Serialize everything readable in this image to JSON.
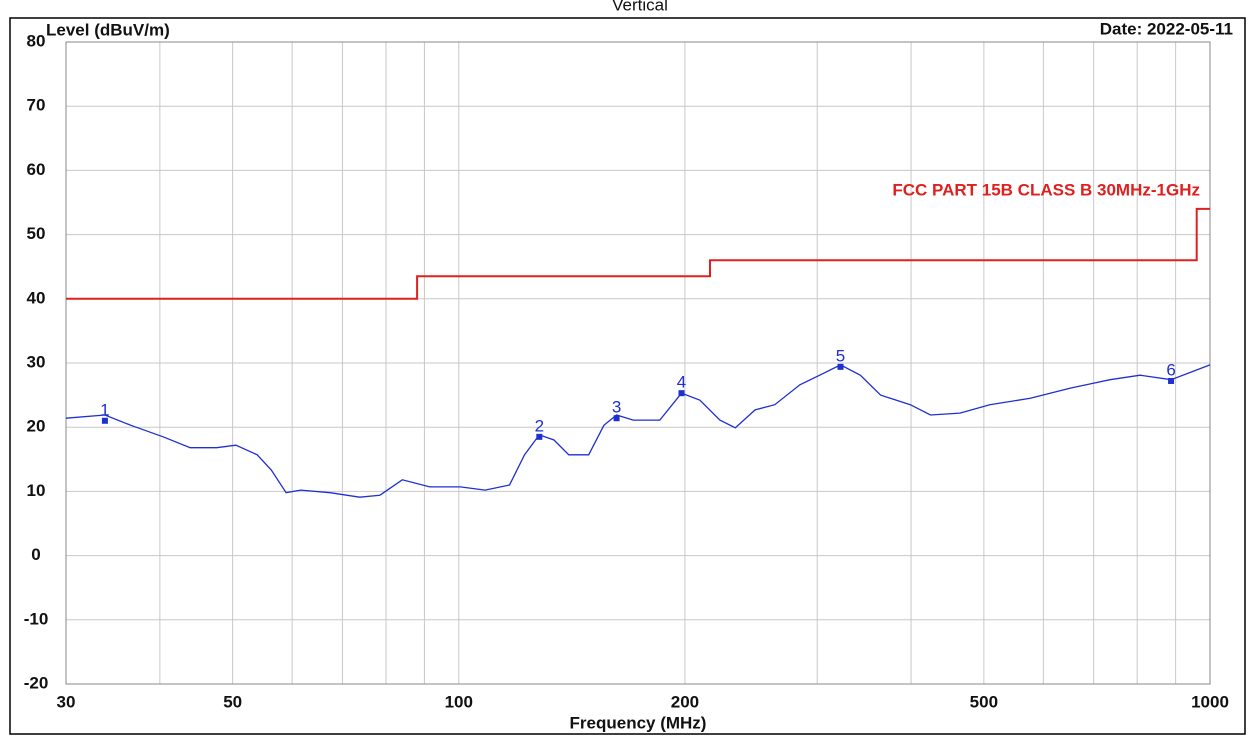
{
  "chart_data": {
    "type": "line",
    "title": "Vertical",
    "ylabel": "Level (dBuV/m)",
    "date": "Date: 2022-05-11",
    "xlabel": "Frequency (MHz)",
    "xscale": "log",
    "xlim": [
      30,
      1000
    ],
    "ylim": [
      -20,
      80
    ],
    "xticks": [
      30,
      50,
      100,
      200,
      500,
      1000
    ],
    "xminor": [
      40,
      60,
      70,
      80,
      90,
      300,
      400,
      600,
      700,
      800,
      900
    ],
    "yticks": [
      -20,
      -10,
      0,
      10,
      20,
      30,
      40,
      50,
      60,
      70,
      80
    ],
    "grid": true,
    "series": [
      {
        "name": "FCC PART 15B CLASS B 30MHz-1GHz",
        "color": "#e0201e",
        "x": [
          30,
          88,
          88,
          216,
          216,
          960,
          960,
          1000
        ],
        "values": [
          40,
          40,
          43.5,
          43.5,
          46,
          46,
          54,
          54
        ]
      },
      {
        "color": "#1f2fd0",
        "x": [
          30,
          33.8,
          36.6,
          40.4,
          43.9,
          47.6,
          50.5,
          53.9,
          56.3,
          58.9,
          61.6,
          67.4,
          73.8,
          78.5,
          84.1,
          91.5,
          100.5,
          108.4,
          116.8,
          122.3,
          128.0,
          133.9,
          140.1,
          148.9,
          156.0,
          162.2,
          170.7,
          185.2,
          197.9,
          209.4,
          222.6,
          233.4,
          248.0,
          263.4,
          284.5,
          302.3,
          322.2,
          342.4,
          364.3,
          399.1,
          424.5,
          464.6,
          509.2,
          576.5,
          652.8,
          736.3,
          807.1,
          887.5,
          1000
        ],
        "values": [
          21.4,
          21.9,
          20.3,
          18.5,
          16.8,
          16.8,
          17.2,
          15.7,
          13.3,
          9.8,
          10.2,
          9.8,
          9.1,
          9.4,
          11.8,
          10.7,
          10.7,
          10.2,
          11.0,
          15.7,
          18.8,
          18.0,
          15.7,
          15.7,
          20.3,
          21.9,
          21.1,
          21.1,
          25.3,
          24.2,
          21.1,
          19.9,
          22.7,
          23.5,
          26.6,
          28.1,
          29.7,
          28.1,
          25.0,
          23.5,
          21.9,
          22.2,
          23.5,
          24.5,
          26.1,
          27.4,
          28.1,
          27.4,
          29.7
        ]
      }
    ],
    "markers": [
      {
        "label": "1",
        "x": 33.8,
        "y": 21.0
      },
      {
        "label": "2",
        "x": 128.0,
        "y": 18.5
      },
      {
        "label": "3",
        "x": 162.2,
        "y": 21.4
      },
      {
        "label": "4",
        "x": 197.9,
        "y": 25.3
      },
      {
        "label": "5",
        "x": 322.2,
        "y": 29.4
      },
      {
        "label": "6",
        "x": 887.5,
        "y": 27.2
      }
    ]
  }
}
